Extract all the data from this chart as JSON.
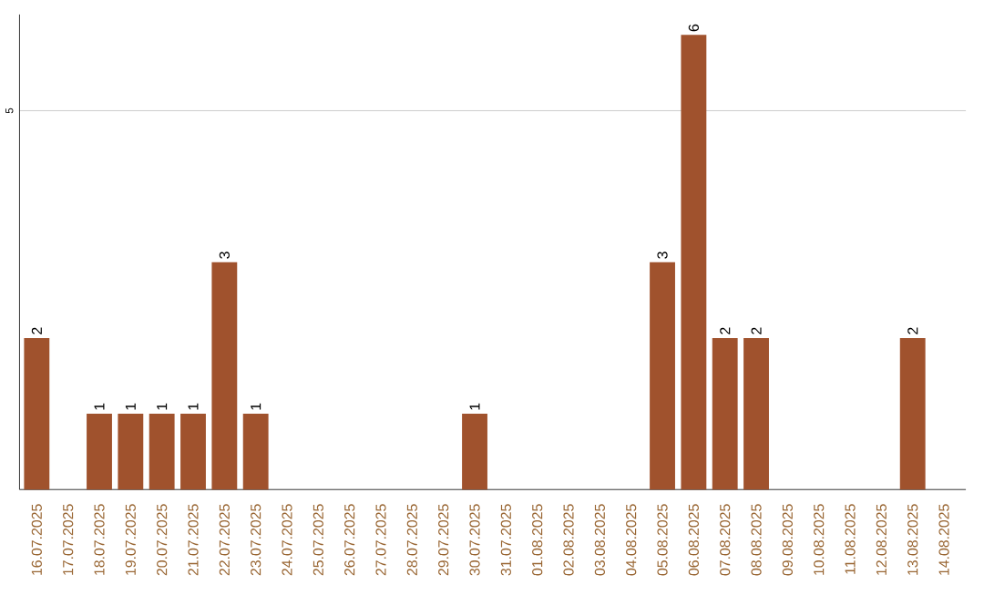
{
  "chart_data": {
    "type": "bar",
    "categories": [
      "16.07.2025",
      "17.07.2025",
      "18.07.2025",
      "19.07.2025",
      "20.07.2025",
      "21.07.2025",
      "22.07.2025",
      "23.07.2025",
      "24.07.2025",
      "25.07.2025",
      "26.07.2025",
      "27.07.2025",
      "28.07.2025",
      "29.07.2025",
      "30.07.2025",
      "31.07.2025",
      "01.08.2025",
      "02.08.2025",
      "03.08.2025",
      "04.08.2025",
      "05.08.2025",
      "06.08.2025",
      "07.08.2025",
      "08.08.2025",
      "09.08.2025",
      "10.08.2025",
      "11.08.2025",
      "12.08.2025",
      "13.08.2025",
      "14.08.2025"
    ],
    "values": [
      2,
      0,
      1,
      1,
      1,
      1,
      3,
      1,
      0,
      0,
      0,
      0,
      0,
      0,
      1,
      0,
      0,
      0,
      0,
      0,
      3,
      6,
      2,
      2,
      0,
      0,
      0,
      0,
      2,
      0
    ],
    "value_labels": [
      "2",
      null,
      "1",
      "1",
      "1",
      "1",
      "3",
      "1",
      null,
      null,
      null,
      null,
      null,
      null,
      "1",
      null,
      null,
      null,
      null,
      null,
      "3",
      "6",
      "2",
      "2",
      null,
      null,
      null,
      null,
      "2",
      null
    ],
    "color": "#a0522d",
    "ylim": [
      0,
      6.27
    ],
    "yticks": [
      5
    ],
    "grid": "y"
  }
}
